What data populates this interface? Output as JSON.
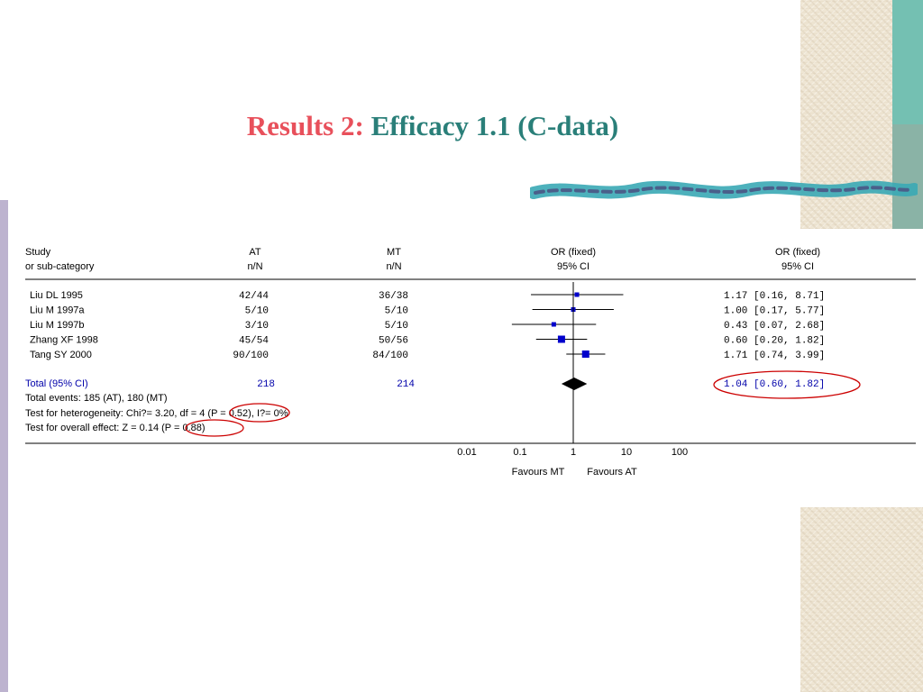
{
  "slide": {
    "title_part1": "Results 2:",
    "title_part2": "Efficacy 1.1 (C-data)"
  },
  "colors": {
    "title_red": "#e8505b",
    "title_teal": "#2a7f79",
    "marker_blue": "#0000cc",
    "highlight_red": "#cc0000",
    "total_blue": "#0000aa"
  },
  "chart_data": {
    "type": "forest",
    "scale": "log",
    "xlim": [
      0.01,
      100
    ],
    "x_ticks": [
      "0.01",
      "0.1",
      "1",
      "10",
      "100"
    ],
    "header": {
      "study": "Study",
      "subcategory": "or sub-category",
      "at": "AT",
      "at_sub": "n/N",
      "mt": "MT",
      "mt_sub": "n/N",
      "plot": "OR (fixed)",
      "plot_sub": "95% CI",
      "effect": "OR (fixed)",
      "effect_sub": "95% CI"
    },
    "studies": [
      {
        "name": "Liu DL 1995",
        "at": "42/44",
        "mt": "36/38",
        "or": 1.17,
        "lo": 0.16,
        "hi": 8.71,
        "label": "1.17 [0.16, 8.71]"
      },
      {
        "name": "Liu M 1997a",
        "at": "5/10",
        "mt": "5/10",
        "or": 1.0,
        "lo": 0.17,
        "hi": 5.77,
        "label": "1.00 [0.17, 5.77]"
      },
      {
        "name": "Liu M 1997b",
        "at": "3/10",
        "mt": "5/10",
        "or": 0.43,
        "lo": 0.07,
        "hi": 2.68,
        "label": "0.43 [0.07, 2.68]"
      },
      {
        "name": "Zhang XF 1998",
        "at": "45/54",
        "mt": "50/56",
        "or": 0.6,
        "lo": 0.2,
        "hi": 1.82,
        "label": "0.60 [0.20, 1.82]"
      },
      {
        "name": "Tang SY 2000",
        "at": "90/100",
        "mt": "84/100",
        "or": 1.71,
        "lo": 0.74,
        "hi": 3.99,
        "label": "1.71 [0.74, 3.99]"
      }
    ],
    "total": {
      "name": "Total (95% CI)",
      "at": "218",
      "mt": "214",
      "or": 1.04,
      "lo": 0.6,
      "hi": 1.82,
      "label": "1.04 [0.60, 1.82]"
    },
    "stats": {
      "events": "Total events: 185 (AT), 180 (MT)",
      "het_pre": "Test for heterogeneity: Chi?= 3.20, df = 4 ",
      "het_p": "(P = 0.52)",
      "het_post": ", I?= 0%",
      "overall_pre": "Test for overall effect: Z = 0.14 ",
      "overall_p": "(P = 0.88)"
    },
    "favours_left": "Favours MT",
    "favours_right": "Favours AT"
  }
}
